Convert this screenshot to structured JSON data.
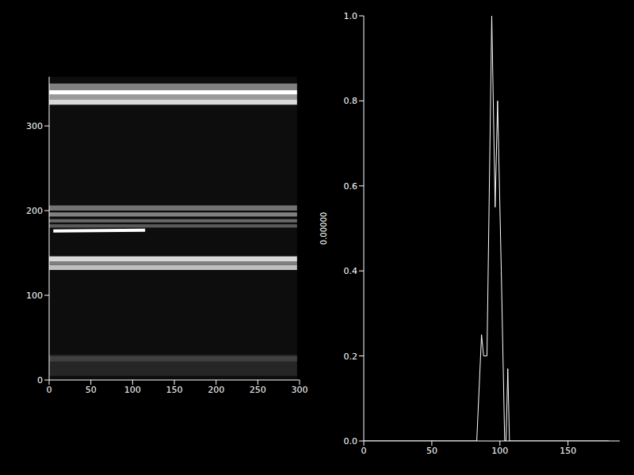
{
  "chart_data": [
    {
      "type": "heatmap",
      "xlim": [
        0,
        300
      ],
      "ylim": [
        0,
        358
      ],
      "xticks": [
        0,
        50,
        100,
        150,
        200,
        250,
        300
      ],
      "yticks": [
        0,
        100,
        200,
        300
      ],
      "x_extent": [
        0,
        297
      ],
      "background": 0.05,
      "bands": [
        {
          "y": [
            5,
            30
          ],
          "intensity": 0.15
        },
        {
          "y": [
            22,
            28
          ],
          "intensity": 0.25
        },
        {
          "y": [
            130,
            136
          ],
          "intensity": 0.75
        },
        {
          "y": [
            136,
            140
          ],
          "intensity": 0.5
        },
        {
          "y": [
            140,
            146
          ],
          "intensity": 0.85
        },
        {
          "y": [
            180,
            184
          ],
          "intensity": 0.35
        },
        {
          "y": [
            186,
            190
          ],
          "intensity": 0.4
        },
        {
          "y": [
            193,
            198
          ],
          "intensity": 0.5
        },
        {
          "y": [
            200,
            206
          ],
          "intensity": 0.45
        },
        {
          "y": [
            325,
            331
          ],
          "intensity": 0.85
        },
        {
          "y": [
            331,
            337
          ],
          "intensity": 0.6
        },
        {
          "y": [
            337,
            342
          ],
          "intensity": 1.0
        },
        {
          "y": [
            342,
            350
          ],
          "intensity": 0.5
        }
      ],
      "streak": {
        "x": [
          5,
          115
        ],
        "y": [
          176,
          177
        ],
        "color": "#ffffff"
      }
    },
    {
      "type": "line",
      "y_label": "0.00000",
      "x": [
        0,
        83,
        86.5,
        88,
        90.5,
        94,
        96.5,
        98.3,
        101,
        103.5,
        104.5,
        105.8,
        107,
        180
      ],
      "values": [
        0,
        0,
        0.25,
        0.2,
        0.2,
        1.0,
        0.55,
        0.8,
        0.4,
        0,
        0,
        0.17,
        0,
        0
      ],
      "color": "#ffffff",
      "xlim": [
        0,
        188
      ],
      "ylim": [
        0,
        1
      ],
      "xticks": [
        0,
        50,
        100,
        150
      ],
      "yticks": [
        {
          "value": 0,
          "label": "0.0"
        },
        {
          "value": 0.2,
          "label": "0.2"
        },
        {
          "value": 0.4,
          "label": "0.4"
        },
        {
          "value": 0.6,
          "label": "0.6"
        },
        {
          "value": 0.8,
          "label": "0.8"
        },
        {
          "value": 1,
          "label": "1.0"
        }
      ]
    }
  ]
}
